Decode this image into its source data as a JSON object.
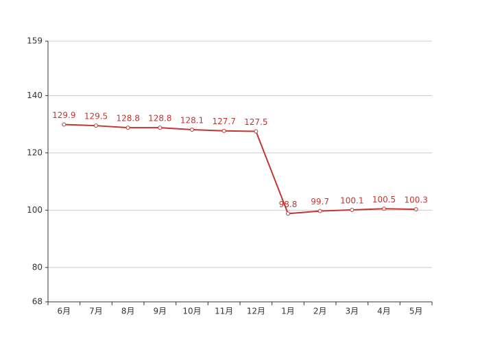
{
  "chart_data": {
    "type": "line",
    "categories": [
      "6月",
      "7月",
      "8月",
      "9月",
      "10月",
      "11月",
      "12月",
      "1月",
      "2月",
      "3月",
      "4月",
      "5月"
    ],
    "series": [
      {
        "color": "#c23531",
        "values": [
          129.9,
          129.5,
          128.8,
          128.8,
          128.1,
          127.7,
          127.5,
          98.8,
          99.7,
          100.1,
          100.5,
          100.3
        ]
      }
    ],
    "ylim": [
      68,
      159
    ],
    "yticks": [
      68,
      80,
      100,
      120,
      140,
      159
    ],
    "grid": true,
    "data_labels": true
  }
}
